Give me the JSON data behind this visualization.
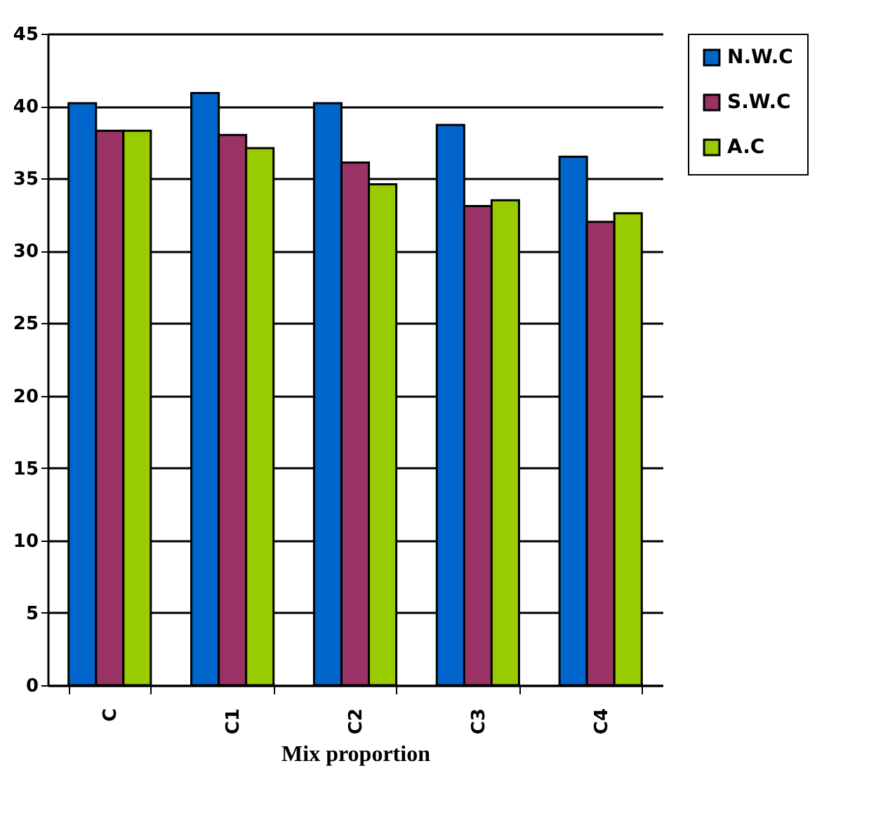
{
  "chart_data": {
    "type": "bar",
    "xlabel": "Mix proportion",
    "categories": [
      "C",
      "C1",
      "C2",
      "C3",
      "C4"
    ],
    "series": [
      {
        "name": "N.W.C",
        "color": "#0066cc",
        "values": [
          40.2,
          40.9,
          40.2,
          38.7,
          36.5
        ]
      },
      {
        "name": "S.W.C",
        "color": "#993366",
        "values": [
          38.3,
          38.0,
          36.1,
          33.1,
          32.0
        ]
      },
      {
        "name": "A.C",
        "color": "#99cc00",
        "values": [
          38.3,
          37.1,
          34.6,
          33.5,
          32.6
        ]
      }
    ],
    "ylim": [
      0,
      45
    ],
    "yticks": [
      0,
      5,
      10,
      15,
      20,
      25,
      30,
      35,
      40,
      45
    ],
    "grid": "y",
    "legend": "right"
  }
}
